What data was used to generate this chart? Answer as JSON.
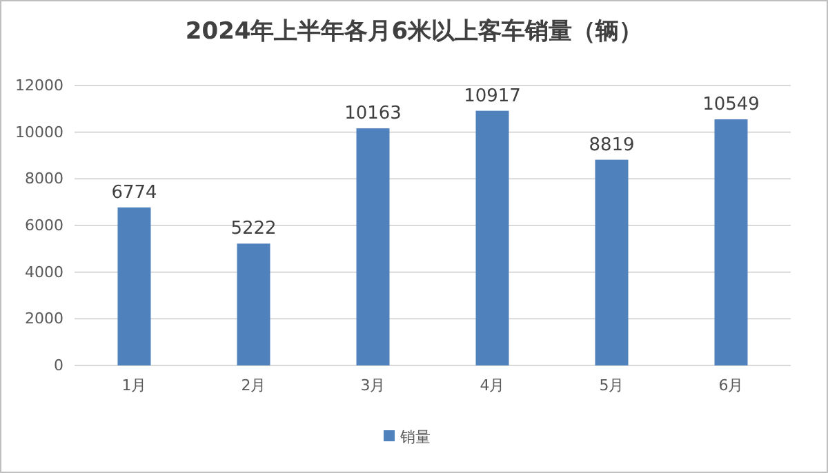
{
  "chart_data": {
    "type": "bar",
    "title": "2024年上半年各月6米以上客车销量（辆）",
    "categories": [
      "1月",
      "2月",
      "3月",
      "4月",
      "5月",
      "6月"
    ],
    "series": [
      {
        "name": "销量",
        "color": "#4f81bd",
        "values": [
          6774,
          5222,
          10163,
          10917,
          8819,
          10549
        ]
      }
    ],
    "ylim": [
      0,
      12000
    ],
    "yticks": [
      0,
      2000,
      4000,
      6000,
      8000,
      10000,
      12000
    ],
    "grid": "y",
    "legend": "bottom",
    "data_labels": true
  }
}
